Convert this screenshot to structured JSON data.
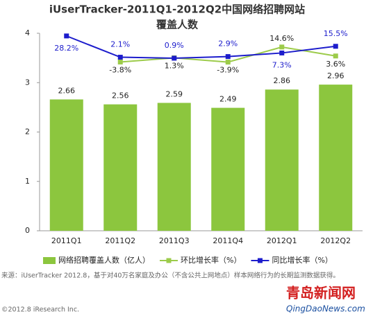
{
  "chart_data": {
    "type": "bar",
    "title": "iUserTracker-2011Q1-2012Q2中国网络招聘网站",
    "subtitle": "覆盖人数",
    "categories": [
      "2011Q1",
      "2011Q2",
      "2011Q3",
      "2011Q4",
      "2012Q1",
      "2012Q2"
    ],
    "ylim": [
      0,
      4
    ],
    "yticks": [
      0,
      1,
      2,
      3,
      4
    ],
    "y2lim": [
      -211,
      31.5
    ],
    "series": [
      {
        "name": "网络招聘覆盖人数（亿人）",
        "type": "bar",
        "color": "#8cc63e",
        "values": [
          2.66,
          2.56,
          2.59,
          2.49,
          2.86,
          2.96
        ]
      },
      {
        "name": "环比增长率（%）",
        "type": "line",
        "axis": "y2",
        "color": "#9ccb4a",
        "values": [
          null,
          -3.8,
          1.3,
          -3.9,
          14.6,
          3.6
        ],
        "value_labels": [
          null,
          "-3.8%",
          "1.3%",
          "-3.9%",
          "14.6%",
          "3.6%"
        ]
      },
      {
        "name": "同比增长率（%）",
        "type": "line",
        "axis": "y2",
        "color": "#1c1ccc",
        "values": [
          28.2,
          2.1,
          0.9,
          2.9,
          7.3,
          15.5
        ],
        "value_labels": [
          "28.2%",
          "2.1%",
          "0.9%",
          "2.9%",
          "7.3%",
          "15.5%"
        ]
      }
    ],
    "source": "来源：iUserTracker 2012.8，基于对40万名家庭及办公（不含公共上网地点）样本网络行为的长期监测数据获得。",
    "copyright": "©2012.8 iResearch Inc.",
    "watermark": "青岛新闻网",
    "watermark_url": "QingDaoNews.com"
  }
}
